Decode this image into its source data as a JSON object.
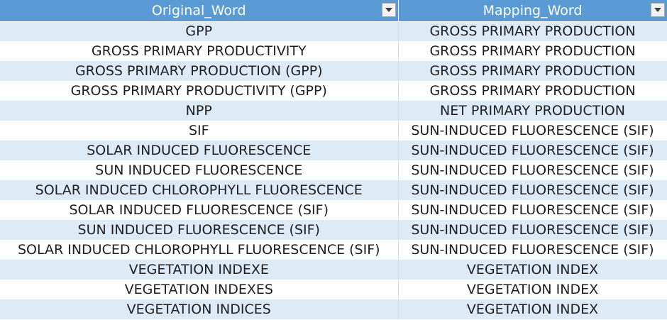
{
  "table": {
    "headers": [
      "Original_Word",
      "Mapping_Word"
    ],
    "rows": [
      [
        "GPP",
        "GROSS PRIMARY PRODUCTION"
      ],
      [
        "GROSS PRIMARY PRODUCTIVITY",
        "GROSS PRIMARY PRODUCTION"
      ],
      [
        "GROSS PRIMARY PRODUCTION (GPP)",
        "GROSS PRIMARY PRODUCTION"
      ],
      [
        "GROSS PRIMARY PRODUCTIVITY (GPP)",
        "GROSS PRIMARY PRODUCTION"
      ],
      [
        "NPP",
        "NET PRIMARY PRODUCTION"
      ],
      [
        "SIF",
        "SUN-INDUCED FLUORESCENCE (SIF)"
      ],
      [
        "SOLAR INDUCED FLUORESCENCE",
        "SUN-INDUCED FLUORESCENCE (SIF)"
      ],
      [
        "SUN INDUCED FLUORESCENCE",
        "SUN-INDUCED FLUORESCENCE (SIF)"
      ],
      [
        "SOLAR INDUCED CHLOROPHYLL FLUORESCENCE",
        "SUN-INDUCED FLUORESCENCE (SIF)"
      ],
      [
        "SOLAR INDUCED FLUORESCENCE (SIF)",
        "SUN-INDUCED FLUORESCENCE (SIF)"
      ],
      [
        "SUN INDUCED FLUORESCENCE (SIF)",
        "SUN-INDUCED FLUORESCENCE (SIF)"
      ],
      [
        "SOLAR INDUCED CHLOROPHYLL FLUORESCENCE (SIF)",
        "SUN-INDUCED FLUORESCENCE (SIF)"
      ],
      [
        "VEGETATION INDEXE",
        "VEGETATION INDEX"
      ],
      [
        "VEGETATION INDEXES",
        "VEGETATION INDEX"
      ],
      [
        "VEGETATION INDICES",
        "VEGETATION INDEX"
      ]
    ]
  },
  "icons": {
    "filter": "dropdown-filter-icon"
  },
  "colors": {
    "header": "#5b9bd5",
    "band": "#ddebf7",
    "header_text": "#ffffff"
  }
}
